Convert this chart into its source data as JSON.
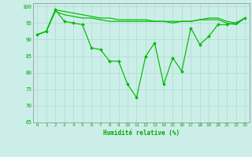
{
  "x": [
    0,
    1,
    2,
    3,
    4,
    5,
    6,
    7,
    8,
    9,
    10,
    11,
    12,
    13,
    14,
    15,
    16,
    17,
    18,
    19,
    20,
    21,
    22,
    23
  ],
  "values": [
    91.5,
    92.5,
    99,
    95.5,
    95,
    94.5,
    87.5,
    87.0,
    83.5,
    83.5,
    76.5,
    72.5,
    85.0,
    89.0,
    76.5,
    84.5,
    80.5,
    93.5,
    88.5,
    91.0,
    94.5,
    94.5,
    95.0,
    96.5
  ],
  "smooth_top": [
    91.5,
    92.5,
    99.0,
    98.5,
    98.0,
    97.5,
    97.0,
    96.5,
    96.5,
    96.0,
    96.0,
    96.0,
    96.0,
    95.5,
    95.5,
    95.5,
    95.5,
    95.5,
    96.0,
    96.5,
    96.5,
    95.5,
    95.0,
    96.5
  ],
  "smooth_mid": [
    91.5,
    92.5,
    98.5,
    97.5,
    97.0,
    96.5,
    96.5,
    96.0,
    95.5,
    95.5,
    95.5,
    95.5,
    95.5,
    95.5,
    95.5,
    95.0,
    95.5,
    95.5,
    96.0,
    96.0,
    96.0,
    95.0,
    94.5,
    96.5
  ],
  "xlabel": "Humidité relative (%)",
  "ylim": [
    65,
    101
  ],
  "yticks": [
    65,
    70,
    75,
    80,
    85,
    90,
    95,
    100
  ],
  "bg_color": "#cceee8",
  "grid_color": "#aaddcc",
  "line_color": "#00bb00",
  "font_color": "#00aa00"
}
